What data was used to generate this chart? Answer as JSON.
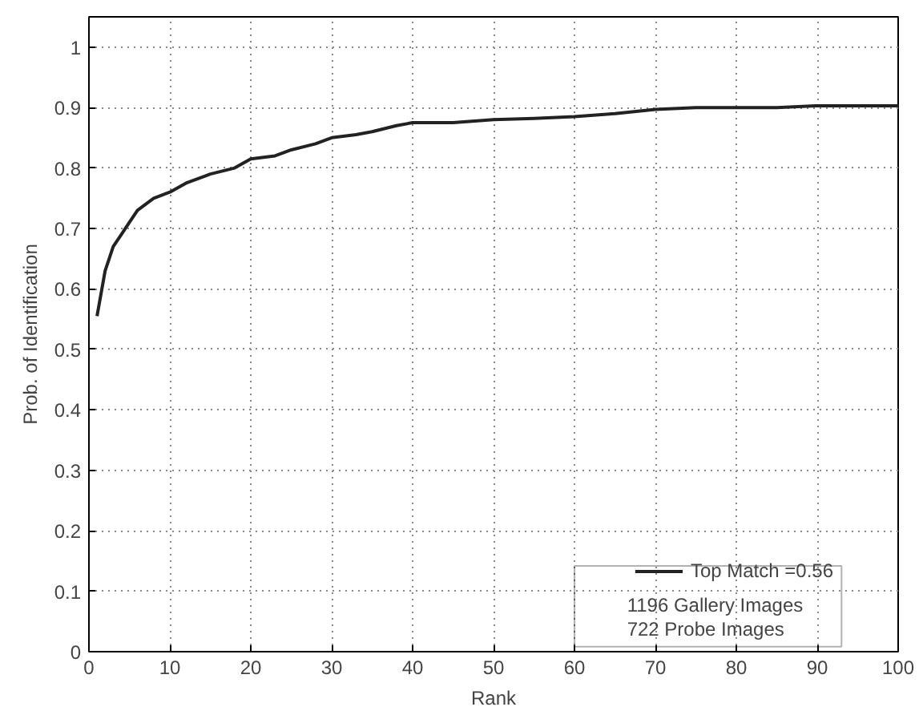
{
  "chart_data": {
    "type": "line",
    "xlabel": "Rank",
    "ylabel": "Prob. of Identification",
    "x": [
      1,
      2,
      3,
      4,
      5,
      6,
      7,
      8,
      10,
      12,
      15,
      18,
      20,
      23,
      25,
      28,
      30,
      33,
      35,
      38,
      40,
      45,
      50,
      55,
      60,
      65,
      70,
      75,
      80,
      85,
      90,
      95,
      100
    ],
    "series": [
      {
        "name": "Top Match =0.56",
        "color": "#222222",
        "values": [
          0.555,
          0.63,
          0.67,
          0.69,
          0.71,
          0.73,
          0.74,
          0.75,
          0.76,
          0.775,
          0.79,
          0.8,
          0.815,
          0.82,
          0.83,
          0.84,
          0.85,
          0.855,
          0.86,
          0.87,
          0.875,
          0.875,
          0.88,
          0.882,
          0.885,
          0.89,
          0.897,
          0.9,
          0.9,
          0.9,
          0.903,
          0.903,
          0.903
        ]
      }
    ],
    "annotations": [
      "1196 Gallery Images",
      "722 Probe Images"
    ],
    "xlim": [
      0,
      100
    ],
    "ylim": [
      0,
      1.05
    ],
    "xticks": [
      0,
      10,
      20,
      30,
      40,
      50,
      60,
      70,
      80,
      90,
      100
    ],
    "yticks": [
      0,
      0.1,
      0.2,
      0.3,
      0.4,
      0.5,
      0.6,
      0.7,
      0.8,
      0.9,
      1
    ],
    "grid": true,
    "legend": "bottom right",
    "line_style": "solid",
    "marker": "none"
  }
}
